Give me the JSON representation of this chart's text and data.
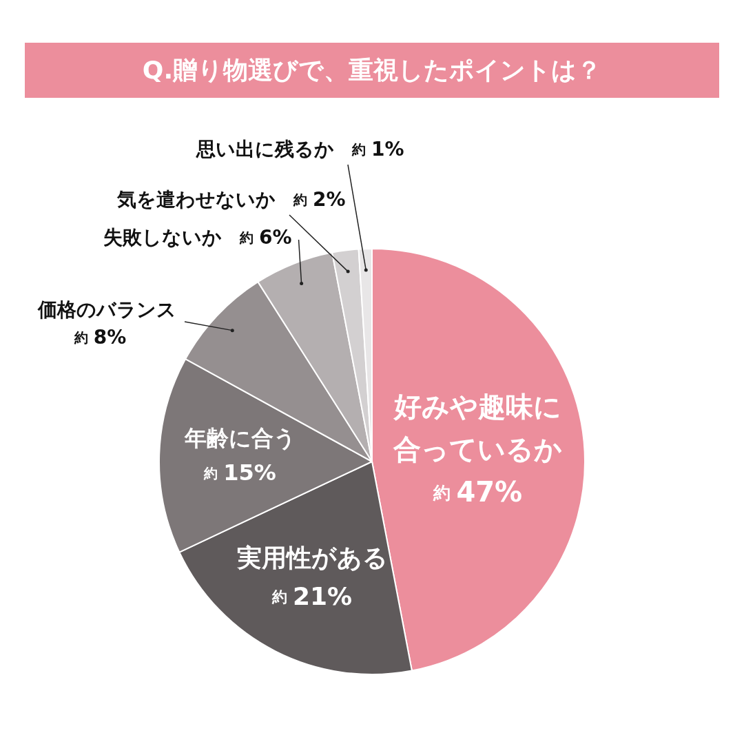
{
  "chart_data": {
    "type": "pie",
    "title": "Q.贈り物選びで、重視したポイントは？",
    "categories": [
      "好みや趣味に合っているか",
      "実用性がある",
      "年齢に合う",
      "価格のバランス",
      "失敗しないか",
      "気を遣わせないか",
      "思い出に残るか"
    ],
    "values": [
      47,
      21,
      15,
      8,
      6,
      2,
      1
    ],
    "colors": [
      "#ec8e9c",
      "#5f5a5b",
      "#7d7778",
      "#958f90",
      "#b4afb0",
      "#d3d0d1",
      "#e8e6e7"
    ],
    "value_labels": [
      "約 47%",
      "約 21%",
      "約 15%",
      "約 8%",
      "約 6%",
      "約 2%",
      "約 1%"
    ],
    "legend": false
  }
}
